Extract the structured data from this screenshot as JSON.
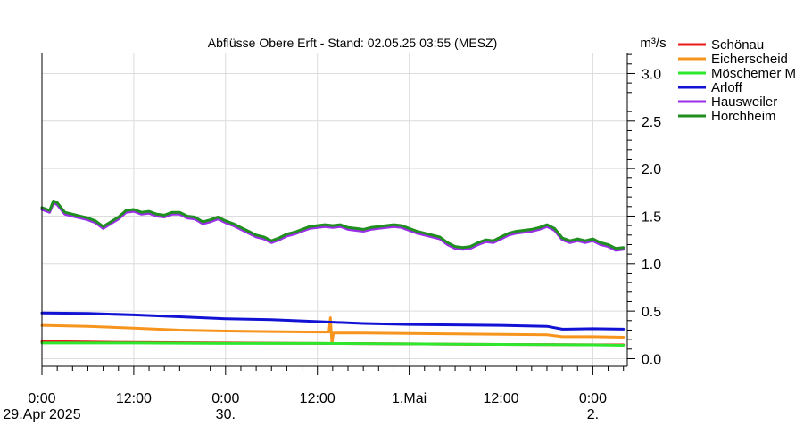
{
  "chart_data": {
    "type": "line",
    "title": "Abflüsse Obere Erft - Stand: 02.05.25 03:55 (MESZ)",
    "ylabel": "m³/s",
    "ylim": [
      -0.08,
      3.22
    ],
    "yticks": [
      0.0,
      0.5,
      1.0,
      1.5,
      2.0,
      2.5,
      3.0
    ],
    "ytick_labels": [
      "0.0",
      "0.5",
      "1.0",
      "1.5",
      "2.0",
      "2.5",
      "3.0"
    ],
    "x_unit": "hours since 29.Apr 2025 0:00",
    "xlim": [
      0,
      76.5
    ],
    "xticks": [
      {
        "x": 0,
        "label": "0:00",
        "sub": "29.Apr 2025"
      },
      {
        "x": 12,
        "label": "12:00",
        "sub": ""
      },
      {
        "x": 24,
        "label": "0:00",
        "sub": "30."
      },
      {
        "x": 36,
        "label": "12:00",
        "sub": ""
      },
      {
        "x": 48,
        "label": "1.Mai",
        "sub": ""
      },
      {
        "x": 60,
        "label": "12:00",
        "sub": ""
      },
      {
        "x": 72,
        "label": "0:00",
        "sub": "2."
      }
    ],
    "grid": true,
    "legend_position": "right",
    "series": [
      {
        "name": "Schönau",
        "color": "#e8191a",
        "x": [
          0,
          6,
          12,
          24,
          36,
          48,
          60,
          76
        ],
        "y": [
          0.18,
          0.175,
          0.17,
          0.165,
          0.16,
          0.155,
          0.15,
          0.145
        ]
      },
      {
        "name": "Eicherscheid",
        "color": "#f7941d",
        "x": [
          0,
          6,
          12,
          18,
          24,
          30,
          36,
          37.5,
          37.7,
          37.9,
          38.1,
          42,
          48,
          54,
          60,
          66,
          68,
          72,
          76
        ],
        "y": [
          0.35,
          0.34,
          0.32,
          0.3,
          0.29,
          0.285,
          0.28,
          0.28,
          0.43,
          0.16,
          0.27,
          0.27,
          0.265,
          0.26,
          0.255,
          0.25,
          0.23,
          0.23,
          0.225
        ]
      },
      {
        "name": "Möschemer M",
        "color": "#2ee82e",
        "x": [
          0,
          12,
          24,
          36,
          48,
          60,
          72,
          76
        ],
        "y": [
          0.165,
          0.165,
          0.16,
          0.16,
          0.155,
          0.15,
          0.145,
          0.14
        ]
      },
      {
        "name": "Arloff",
        "color": "#1212d4",
        "x": [
          0,
          6,
          12,
          18,
          24,
          30,
          36,
          42,
          48,
          54,
          60,
          66,
          68,
          72,
          76
        ],
        "y": [
          0.48,
          0.475,
          0.46,
          0.44,
          0.42,
          0.41,
          0.39,
          0.37,
          0.36,
          0.355,
          0.35,
          0.34,
          0.31,
          0.315,
          0.31
        ]
      },
      {
        "name": "Hausweiler",
        "color": "#9b30e8",
        "x": [
          0,
          1,
          1.5,
          2,
          3,
          4,
          5,
          6,
          7,
          8,
          9,
          10,
          11,
          12,
          13,
          14,
          15,
          16,
          17,
          18,
          19,
          20,
          21,
          22,
          23,
          24,
          25,
          26,
          27,
          28,
          29,
          30,
          31,
          32,
          33,
          34,
          35,
          36,
          37,
          38,
          39,
          40,
          41,
          42,
          43,
          44,
          45,
          46,
          47,
          48,
          49,
          50,
          51,
          52,
          53,
          54,
          55,
          56,
          57,
          58,
          59,
          60,
          61,
          62,
          63,
          64,
          65,
          66,
          67,
          68,
          69,
          70,
          71,
          72,
          73,
          74,
          75,
          76
        ],
        "y": [
          1.57,
          1.54,
          1.64,
          1.62,
          1.52,
          1.5,
          1.48,
          1.46,
          1.43,
          1.37,
          1.42,
          1.47,
          1.54,
          1.55,
          1.52,
          1.53,
          1.5,
          1.49,
          1.52,
          1.52,
          1.48,
          1.47,
          1.42,
          1.44,
          1.47,
          1.43,
          1.4,
          1.36,
          1.32,
          1.28,
          1.26,
          1.22,
          1.25,
          1.29,
          1.31,
          1.34,
          1.37,
          1.38,
          1.39,
          1.38,
          1.39,
          1.36,
          1.35,
          1.34,
          1.36,
          1.37,
          1.38,
          1.39,
          1.38,
          1.35,
          1.32,
          1.3,
          1.28,
          1.26,
          1.2,
          1.16,
          1.15,
          1.16,
          1.2,
          1.23,
          1.22,
          1.26,
          1.3,
          1.32,
          1.33,
          1.34,
          1.36,
          1.39,
          1.35,
          1.25,
          1.22,
          1.24,
          1.22,
          1.24,
          1.2,
          1.18,
          1.14,
          1.15
        ]
      },
      {
        "name": "Horchheim",
        "color": "#1f8f1f",
        "x": [
          0,
          1,
          1.5,
          2,
          3,
          4,
          5,
          6,
          7,
          8,
          9,
          10,
          11,
          12,
          13,
          14,
          15,
          16,
          17,
          18,
          19,
          20,
          21,
          22,
          23,
          24,
          25,
          26,
          27,
          28,
          29,
          30,
          31,
          32,
          33,
          34,
          35,
          36,
          37,
          38,
          39,
          40,
          41,
          42,
          43,
          44,
          45,
          46,
          47,
          48,
          49,
          50,
          51,
          52,
          53,
          54,
          55,
          56,
          57,
          58,
          59,
          60,
          61,
          62,
          63,
          64,
          65,
          66,
          67,
          68,
          69,
          70,
          71,
          72,
          73,
          74,
          75,
          76
        ],
        "y": [
          1.59,
          1.56,
          1.66,
          1.64,
          1.54,
          1.52,
          1.5,
          1.48,
          1.45,
          1.39,
          1.44,
          1.49,
          1.56,
          1.57,
          1.54,
          1.55,
          1.52,
          1.51,
          1.54,
          1.54,
          1.5,
          1.49,
          1.44,
          1.46,
          1.49,
          1.45,
          1.42,
          1.38,
          1.34,
          1.3,
          1.28,
          1.24,
          1.27,
          1.31,
          1.33,
          1.36,
          1.39,
          1.4,
          1.41,
          1.4,
          1.41,
          1.38,
          1.37,
          1.36,
          1.38,
          1.39,
          1.4,
          1.41,
          1.4,
          1.37,
          1.34,
          1.32,
          1.3,
          1.28,
          1.22,
          1.18,
          1.17,
          1.18,
          1.22,
          1.25,
          1.24,
          1.28,
          1.32,
          1.34,
          1.35,
          1.36,
          1.38,
          1.41,
          1.37,
          1.27,
          1.24,
          1.26,
          1.24,
          1.26,
          1.22,
          1.2,
          1.16,
          1.17
        ]
      }
    ]
  }
}
